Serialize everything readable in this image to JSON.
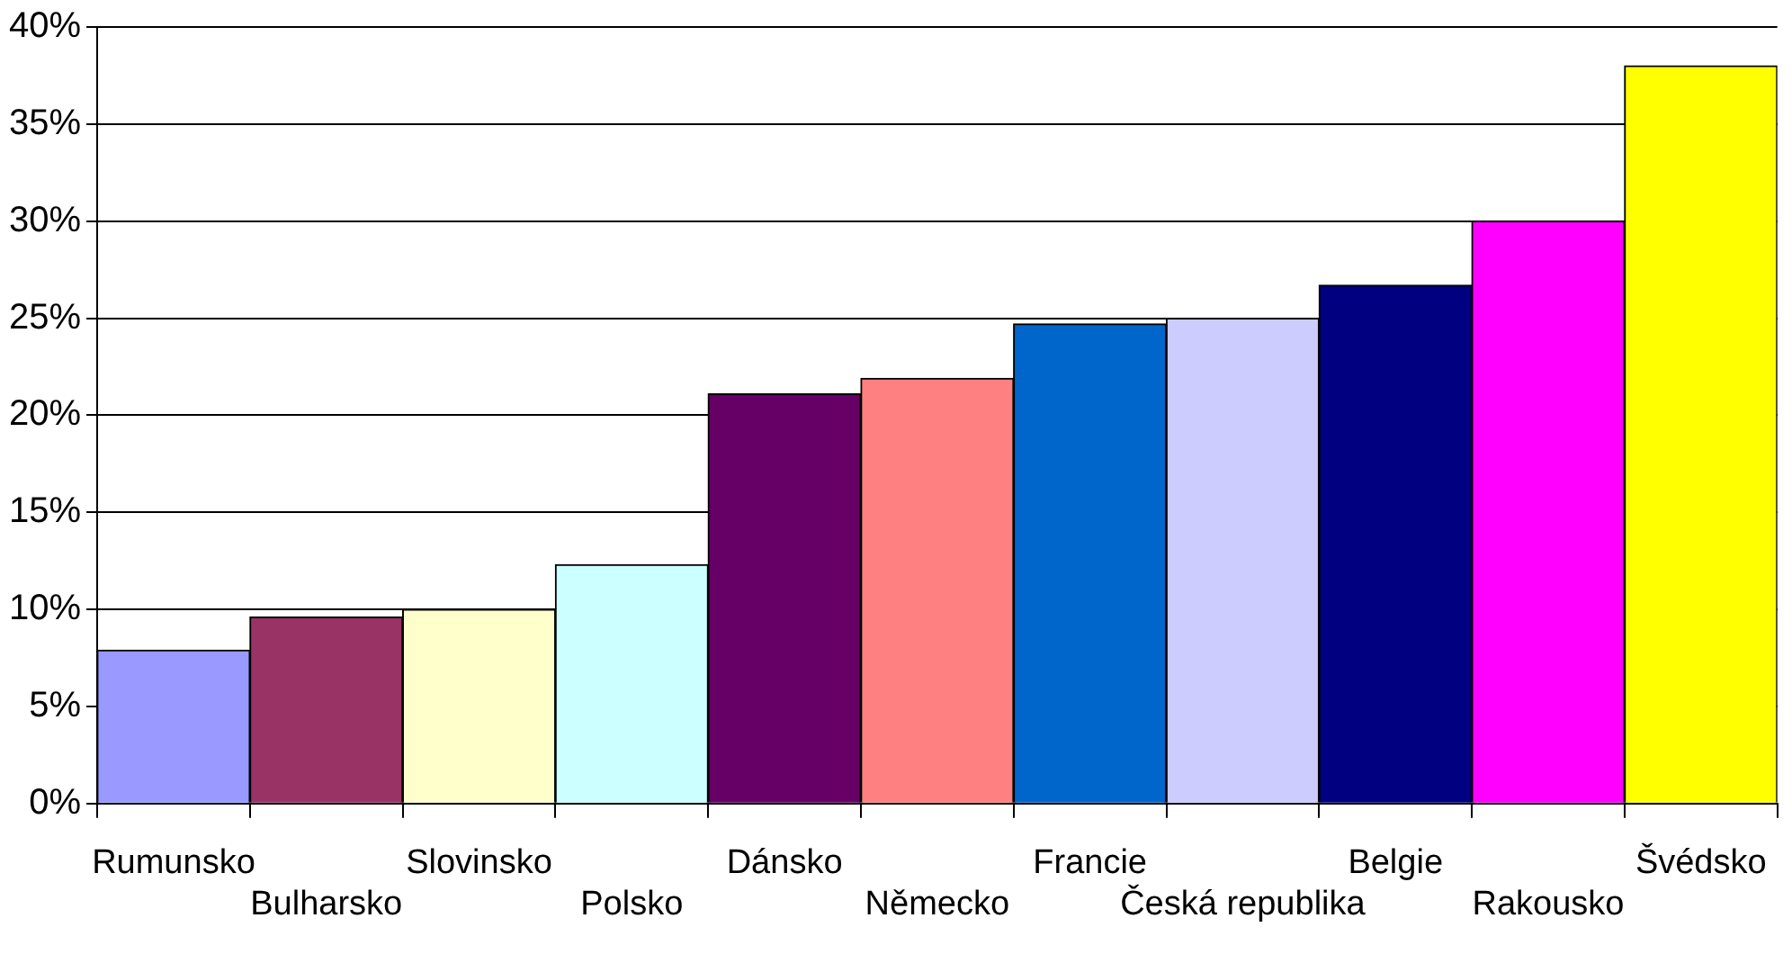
{
  "chart_data": {
    "type": "bar",
    "categories": [
      "Rumunsko",
      "Bulharsko",
      "Slovinsko",
      "Polsko",
      "Dánsko",
      "Německo",
      "Francie",
      "Česká republika",
      "Belgie",
      "Rakousko",
      "Švédsko"
    ],
    "values": [
      7.9,
      9.6,
      10.0,
      12.3,
      21.1,
      21.9,
      24.7,
      25.0,
      26.7,
      30.0,
      38.0
    ],
    "colors": [
      "#9999ff",
      "#993366",
      "#ffffcc",
      "#ccffff",
      "#660066",
      "#ff8080",
      "#0066cc",
      "#ccccff",
      "#000080",
      "#ff00ff",
      "#ffff00"
    ],
    "ylim": [
      0,
      40
    ],
    "yticks": [
      {
        "value": 0,
        "label": "0%"
      },
      {
        "value": 5,
        "label": "5%"
      },
      {
        "value": 10,
        "label": "10%"
      },
      {
        "value": 15,
        "label": "15%"
      },
      {
        "value": 20,
        "label": "20%"
      },
      {
        "value": 25,
        "label": "25%"
      },
      {
        "value": 30,
        "label": "30%"
      },
      {
        "value": 35,
        "label": "35%"
      },
      {
        "value": 40,
        "label": "40%"
      }
    ],
    "grid": "y"
  }
}
